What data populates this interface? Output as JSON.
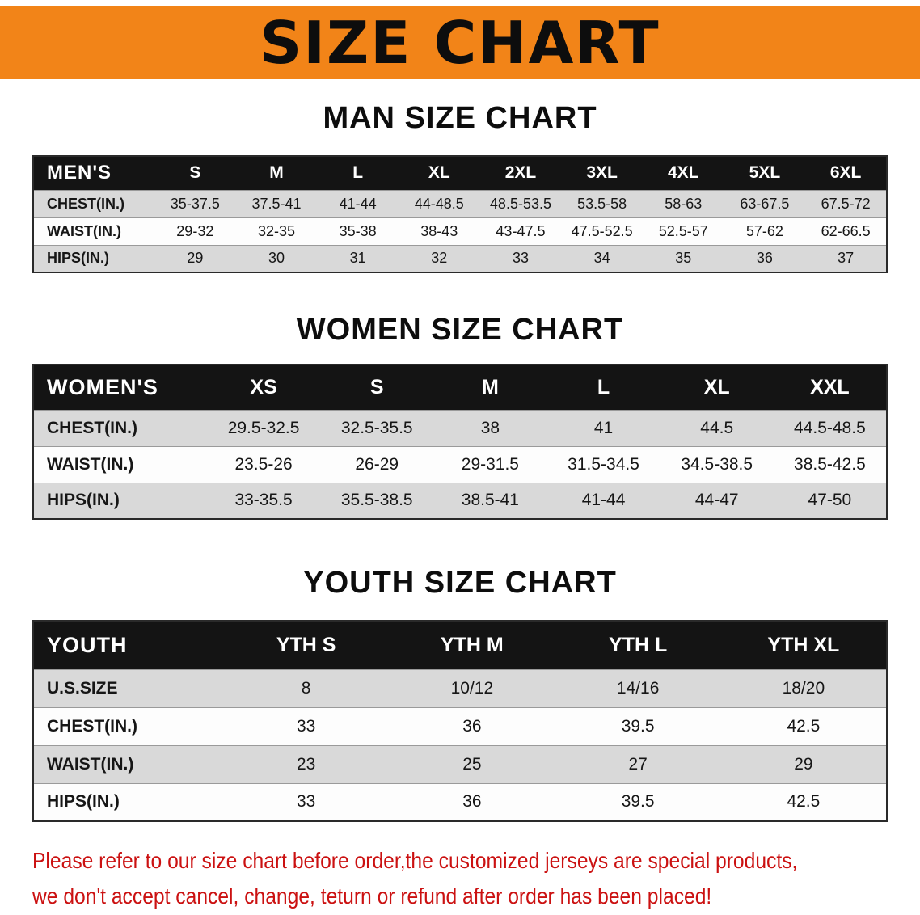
{
  "banner": {
    "title": "SIZE CHART"
  },
  "colors": {
    "banner_orange": "#f28418",
    "table_header_black": "#141414",
    "row_gray": "#d9d9d9",
    "disclaimer_red": "#cb1111"
  },
  "sections": [
    {
      "heading": "MAN SIZE CHART",
      "table": {
        "header": [
          "MEN'S",
          "S",
          "M",
          "L",
          "XL",
          "2XL",
          "3XL",
          "4XL",
          "5XL",
          "6XL"
        ],
        "rows": [
          [
            "CHEST(IN.)",
            "35-37.5",
            "37.5-41",
            "41-44",
            "44-48.5",
            "48.5-53.5",
            "53.5-58",
            "58-63",
            "63-67.5",
            "67.5-72"
          ],
          [
            "WAIST(IN.)",
            "29-32",
            "32-35",
            "35-38",
            "38-43",
            "43-47.5",
            "47.5-52.5",
            "52.5-57",
            "57-62",
            "62-66.5"
          ],
          [
            "HIPS(IN.)",
            "29",
            "30",
            "31",
            "32",
            "33",
            "34",
            "35",
            "36",
            "37"
          ]
        ]
      }
    },
    {
      "heading": "WOMEN SIZE CHART",
      "table": {
        "header": [
          "WOMEN'S",
          "XS",
          "S",
          "M",
          "L",
          "XL",
          "XXL"
        ],
        "rows": [
          [
            "CHEST(IN.)",
            "29.5-32.5",
            "32.5-35.5",
            "38",
            "41",
            "44.5",
            "44.5-48.5"
          ],
          [
            "WAIST(IN.)",
            "23.5-26",
            "26-29",
            "29-31.5",
            "31.5-34.5",
            "34.5-38.5",
            "38.5-42.5"
          ],
          [
            "HIPS(IN.)",
            "33-35.5",
            "35.5-38.5",
            "38.5-41",
            "41-44",
            "44-47",
            "47-50"
          ]
        ]
      }
    },
    {
      "heading": "YOUTH SIZE CHART",
      "table": {
        "header": [
          "YOUTH",
          "YTH S",
          "YTH M",
          "YTH L",
          "YTH XL"
        ],
        "rows": [
          [
            "U.S.SIZE",
            "8",
            "10/12",
            "14/16",
            "18/20"
          ],
          [
            "CHEST(IN.)",
            "33",
            "36",
            "39.5",
            "42.5"
          ],
          [
            "WAIST(IN.)",
            "23",
            "25",
            "27",
            "29"
          ],
          [
            "HIPS(IN.)",
            "33",
            "36",
            "39.5",
            "42.5"
          ]
        ]
      }
    }
  ],
  "footer": {
    "lines": [
      "Please refer to our size chart before order,the customized jerseys are special products,",
      "we don't accept cancel, change, teturn or refund after order has been placed!"
    ]
  }
}
